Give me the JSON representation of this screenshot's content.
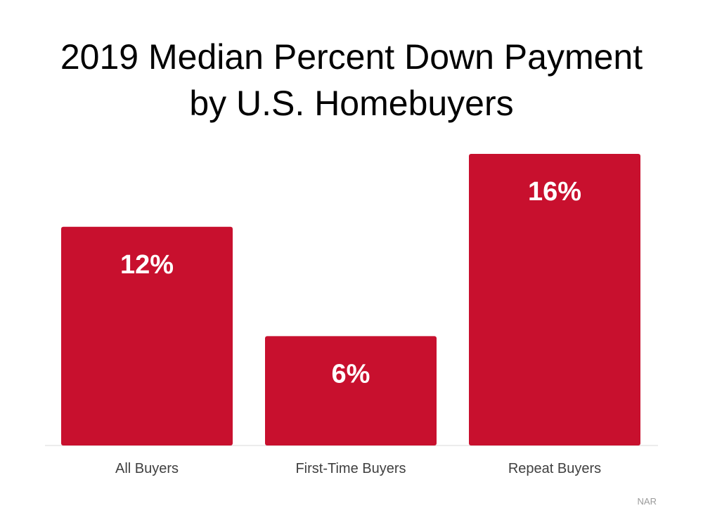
{
  "title": {
    "line1": "2019 Median Percent Down Payment",
    "line2": "by U.S. Homebuyers"
  },
  "source": "NAR",
  "colors": {
    "bar": "#c8102e",
    "value_label": "#ffffff",
    "axis_line": "#d9d9d9",
    "category_label": "#404040"
  },
  "chart_data": {
    "type": "bar",
    "categories": [
      "All Buyers",
      "First-Time Buyers",
      "Repeat Buyers"
    ],
    "values": [
      12,
      6,
      16
    ],
    "value_labels": [
      "12%",
      "6%",
      "16%"
    ],
    "title": "2019 Median Percent Down Payment by U.S. Homebuyers",
    "xlabel": "",
    "ylabel": "",
    "ylim": [
      0,
      16
    ],
    "grid": false,
    "legend": "none"
  }
}
